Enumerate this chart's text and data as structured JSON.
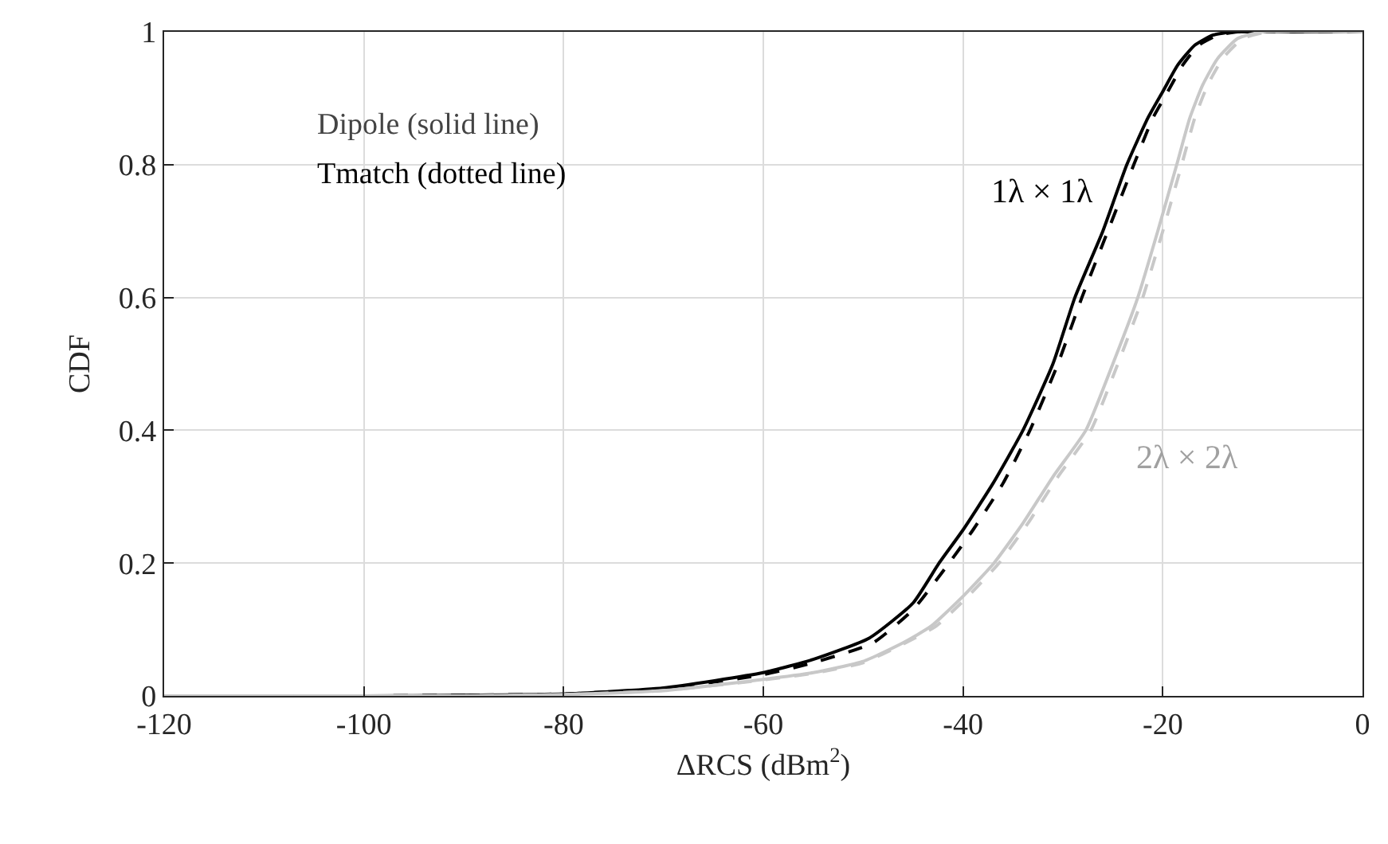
{
  "chart_data": {
    "type": "line",
    "xlabel": "ΔRCS (dBm$^{2}$)",
    "ylabel": "CDF",
    "xlim": [
      -120,
      0
    ],
    "xticks": [
      -120,
      -100,
      -80,
      -60,
      -40,
      -20,
      0
    ],
    "ylim": [
      0,
      1
    ],
    "yticks": [
      0,
      0.2,
      0.4,
      0.6,
      0.8,
      1
    ],
    "grid": true,
    "series": [
      {
        "color": "#000000",
        "line_style": "solid",
        "x": [
          -120,
          -100,
          -90,
          -80,
          -70,
          -60,
          -55,
          -49.4,
          -45,
          -42.4,
          -40,
          -37,
          -34,
          -31,
          -28.8,
          -26,
          -23.6,
          -21.5,
          -20,
          -18.5,
          -16.8,
          -15,
          -13,
          -11,
          0
        ],
        "values": [
          0,
          0,
          0.001,
          0.003,
          0.012,
          0.035,
          0.055,
          0.087,
          0.14,
          0.2,
          0.25,
          0.32,
          0.4,
          0.5,
          0.6,
          0.7,
          0.8,
          0.87,
          0.91,
          0.95,
          0.98,
          0.995,
          1,
          1,
          1
        ]
      },
      {
        "color": "#000000",
        "line_style": "dashed",
        "x": [
          -120,
          -100,
          -90,
          -80,
          -70,
          -60,
          -55,
          -49,
          -45,
          -41.4,
          -39,
          -36,
          -33.3,
          -30.5,
          -28.1,
          -25.5,
          -22.9,
          -21,
          -19.5,
          -18,
          -16.4,
          -14.5,
          -12.5,
          -10.5,
          0
        ],
        "values": [
          0,
          0,
          0.001,
          0.003,
          0.011,
          0.032,
          0.05,
          0.08,
          0.13,
          0.2,
          0.25,
          0.32,
          0.4,
          0.5,
          0.6,
          0.7,
          0.8,
          0.87,
          0.91,
          0.95,
          0.98,
          0.995,
          1,
          1,
          1
        ]
      },
      {
        "color": "#c8c8c8",
        "line_style": "solid",
        "x": [
          -120,
          -100,
          -90,
          -80,
          -70,
          -60,
          -55,
          -50,
          -46,
          -43.2,
          -40,
          -36.9,
          -34,
          -31,
          -27.7,
          -25,
          -22.5,
          -20.5,
          -18.6,
          -17.3,
          -16,
          -14.5,
          -12.5,
          -10,
          0
        ],
        "values": [
          0,
          0,
          0,
          0.002,
          0.008,
          0.025,
          0.035,
          0.052,
          0.08,
          0.105,
          0.15,
          0.2,
          0.26,
          0.33,
          0.4,
          0.5,
          0.6,
          0.7,
          0.8,
          0.87,
          0.92,
          0.96,
          0.99,
          1,
          1
        ]
      },
      {
        "color": "#c8c8c8",
        "line_style": "dashed",
        "x": [
          -120,
          -100,
          -90,
          -80,
          -70,
          -60,
          -55,
          -50,
          -46,
          -42.7,
          -39.5,
          -36.4,
          -33.5,
          -30.5,
          -27.2,
          -24.5,
          -22,
          -20,
          -18.1,
          -16.8,
          -15.5,
          -14,
          -12,
          -9.5,
          0
        ],
        "values": [
          0,
          0,
          0,
          0.002,
          0.008,
          0.024,
          0.034,
          0.05,
          0.078,
          0.105,
          0.15,
          0.2,
          0.26,
          0.33,
          0.4,
          0.5,
          0.6,
          0.7,
          0.8,
          0.87,
          0.92,
          0.96,
          0.99,
          1,
          1
        ]
      }
    ],
    "annotations": [
      "Dipole (solid line)",
      "Tmatch (dotted line)",
      "1λ × 1λ",
      "2λ × 2λ"
    ]
  }
}
